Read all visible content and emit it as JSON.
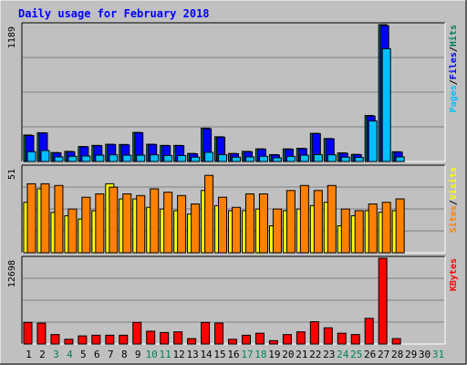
{
  "chart_data": [
    {
      "type": "bar",
      "title": "Daily usage for February 2018",
      "panel": "pages-files-hits",
      "categories": [
        "1",
        "2",
        "3",
        "4",
        "5",
        "6",
        "7",
        "8",
        "9",
        "10",
        "11",
        "12",
        "13",
        "14",
        "15",
        "16",
        "17",
        "18",
        "19",
        "20",
        "21",
        "22",
        "23",
        "24",
        "25",
        "26",
        "27",
        "28",
        "29",
        "30",
        "31"
      ],
      "ymax_label": "1189",
      "ylim": [
        0,
        1189
      ],
      "series": [
        {
          "name": "Hits",
          "color": "#00805c",
          "values": [
            230,
            250,
            78,
            88,
            130,
            140,
            150,
            148,
            253,
            150,
            140,
            140,
            70,
            290,
            215,
            70,
            88,
            110,
            60,
            110,
            115,
            245,
            200,
            75,
            62,
            400,
            1189,
            85,
            0,
            0,
            0
          ]
        },
        {
          "name": "Files",
          "color": "#0000ff",
          "values": [
            226,
            248,
            75,
            85,
            128,
            138,
            148,
            145,
            250,
            148,
            138,
            138,
            67,
            285,
            212,
            67,
            85,
            108,
            57,
            107,
            112,
            242,
            197,
            72,
            60,
            395,
            1180,
            82,
            0,
            0,
            0
          ]
        },
        {
          "name": "Pages",
          "color": "#00c0ff",
          "values": [
            85,
            95,
            40,
            45,
            48,
            55,
            58,
            55,
            55,
            58,
            52,
            52,
            38,
            80,
            60,
            38,
            40,
            45,
            32,
            45,
            55,
            60,
            58,
            38,
            35,
            352,
            980,
            40,
            0,
            0,
            0
          ]
        }
      ],
      "y_title_parts": [
        "Pages",
        "Files",
        "Hits"
      ]
    },
    {
      "type": "bar",
      "panel": "visits-sites",
      "categories": [
        "1",
        "2",
        "3",
        "4",
        "5",
        "6",
        "7",
        "8",
        "9",
        "10",
        "11",
        "12",
        "13",
        "14",
        "15",
        "16",
        "17",
        "18",
        "19",
        "20",
        "21",
        "22",
        "23",
        "24",
        "25",
        "26",
        "27",
        "28",
        "29",
        "30",
        "31"
      ],
      "ymax_label": "51",
      "ylim": [
        0,
        51
      ],
      "series": [
        {
          "name": "Visits",
          "color": "#ffff00",
          "values": [
            30,
            38,
            24,
            22,
            20,
            25,
            41,
            32,
            32,
            27,
            26,
            25,
            23,
            37,
            28,
            25,
            25,
            26,
            16,
            25,
            26,
            28,
            30,
            16,
            22,
            25,
            24,
            25,
            0,
            0,
            0
          ]
        },
        {
          "name": "Sites",
          "color": "#ff8000",
          "values": [
            41,
            41,
            40,
            26,
            33,
            35,
            39,
            35,
            34,
            38,
            36,
            34,
            29,
            46,
            33,
            27,
            35,
            35,
            26,
            37,
            40,
            37,
            40,
            26,
            25,
            29,
            30,
            32,
            0,
            0,
            0
          ]
        }
      ],
      "y_title_parts": [
        "Sites",
        "Visits"
      ]
    },
    {
      "type": "bar",
      "panel": "kbytes",
      "categories": [
        "1",
        "2",
        "3",
        "4",
        "5",
        "6",
        "7",
        "8",
        "9",
        "10",
        "11",
        "12",
        "13",
        "14",
        "15",
        "16",
        "17",
        "18",
        "19",
        "20",
        "21",
        "22",
        "23",
        "24",
        "25",
        "26",
        "27",
        "28",
        "29",
        "30",
        "31"
      ],
      "ymax_label": "12698",
      "ylim": [
        0,
        12698
      ],
      "series": [
        {
          "name": "KBytes",
          "color": "#ff0000",
          "values": [
            3200,
            3100,
            1400,
            700,
            1200,
            1300,
            1300,
            1300,
            3200,
            1900,
            1700,
            1800,
            800,
            3200,
            3100,
            700,
            1300,
            1600,
            500,
            1400,
            1800,
            3300,
            2400,
            1600,
            1400,
            3800,
            12698,
            800,
            0,
            0,
            0
          ]
        }
      ],
      "y_title_parts": [
        "KBytes"
      ]
    }
  ],
  "x_labels": {
    "weekday_color": "#000000",
    "weekend_color": "#00805c",
    "weekend_days": [
      "3",
      "4",
      "10",
      "11",
      "17",
      "18",
      "24",
      "25",
      "31"
    ]
  },
  "colors": {
    "background": "#c0c0c0",
    "plot": "#c0c0c0",
    "title": "#0000ff",
    "separator_gray": "#808080"
  }
}
